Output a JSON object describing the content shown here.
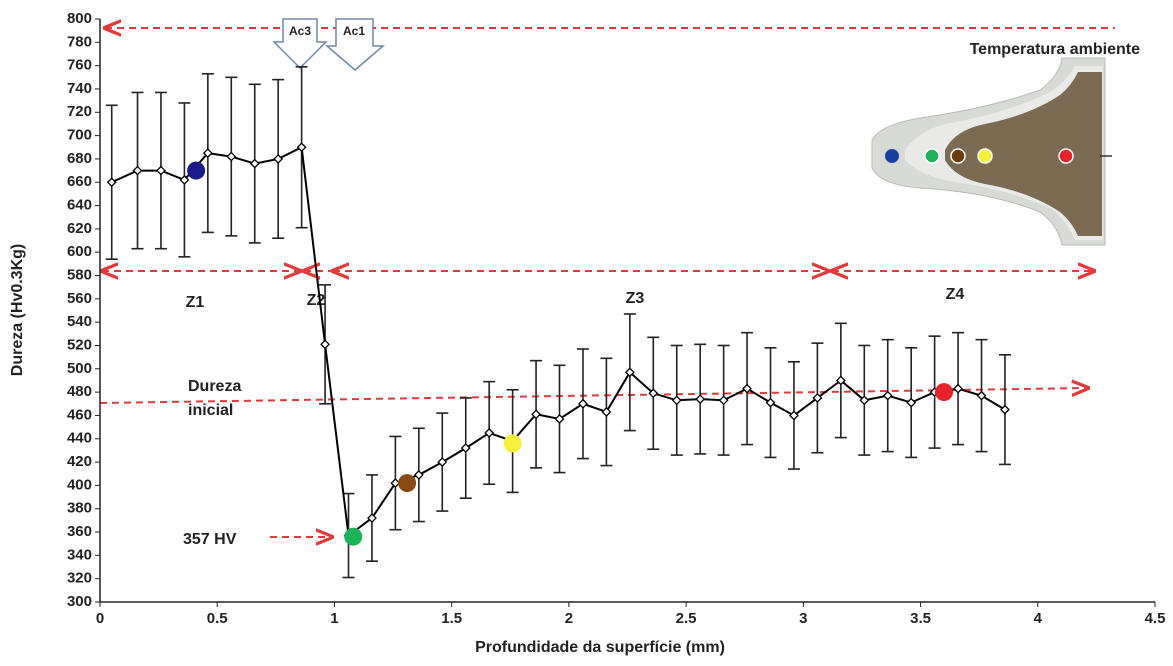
{
  "chart_data": {
    "type": "line",
    "x_label": "Profundidade da superfície (mm)",
    "y_label": "Dureza (Hv0.3Kg)",
    "xlim": [
      0,
      4.5
    ],
    "xticks": [
      0,
      0.5,
      1,
      1.5,
      2,
      2.5,
      3,
      3.5,
      4,
      4.5
    ],
    "ylim": [
      300,
      800
    ],
    "yticks": [
      300,
      320,
      340,
      360,
      380,
      400,
      420,
      440,
      460,
      480,
      500,
      520,
      540,
      560,
      580,
      600,
      620,
      640,
      660,
      680,
      700,
      720,
      740,
      760,
      780,
      800
    ],
    "x": [
      0.05,
      0.16,
      0.26,
      0.36,
      0.46,
      0.56,
      0.66,
      0.76,
      0.86,
      0.96,
      1.06,
      1.16,
      1.26,
      1.36,
      1.46,
      1.56,
      1.66,
      1.76,
      1.86,
      1.96,
      2.06,
      2.16,
      2.26,
      2.36,
      2.46,
      2.56,
      2.66,
      2.76,
      2.86,
      2.96,
      3.06,
      3.16,
      3.26,
      3.36,
      3.46,
      3.56,
      3.66,
      3.76,
      3.86
    ],
    "series": [
      {
        "color": "#000000",
        "values": [
          660,
          670,
          670,
          662,
          685,
          682,
          676,
          680,
          690,
          521,
          357,
          372,
          402,
          409,
          420,
          432,
          445,
          438,
          461,
          457,
          470,
          463,
          497,
          479,
          473,
          474,
          473,
          483,
          471,
          460,
          475,
          490,
          473,
          477,
          471,
          480,
          483,
          477,
          465
        ],
        "errors": [
          66,
          67,
          67,
          66,
          68,
          68,
          68,
          68,
          69,
          51,
          36,
          37,
          40,
          40,
          42,
          43,
          44,
          44,
          46,
          46,
          47,
          46,
          50,
          48,
          47,
          47,
          47,
          48,
          47,
          46,
          47,
          49,
          47,
          48,
          47,
          48,
          48,
          48,
          47
        ]
      }
    ],
    "highlights": {
      "x": [
        0.41,
        1.08,
        1.31,
        1.76,
        3.6
      ],
      "values": [
        670,
        356,
        402,
        436,
        480
      ],
      "colors": [
        "#1a1a8c",
        "#1db35a",
        "#8b4a12",
        "#f5f03a",
        "#e8222a"
      ]
    },
    "annotations": {
      "temperatura": "Temperatura ambiente",
      "zones": [
        "Z1",
        "Z2",
        "Z3",
        "Z4"
      ],
      "dureza_inicial": [
        "Dureza",
        "inicial"
      ],
      "min_label": "357 HV",
      "ac3": "Ac3",
      "ac1": "Ac1"
    }
  }
}
